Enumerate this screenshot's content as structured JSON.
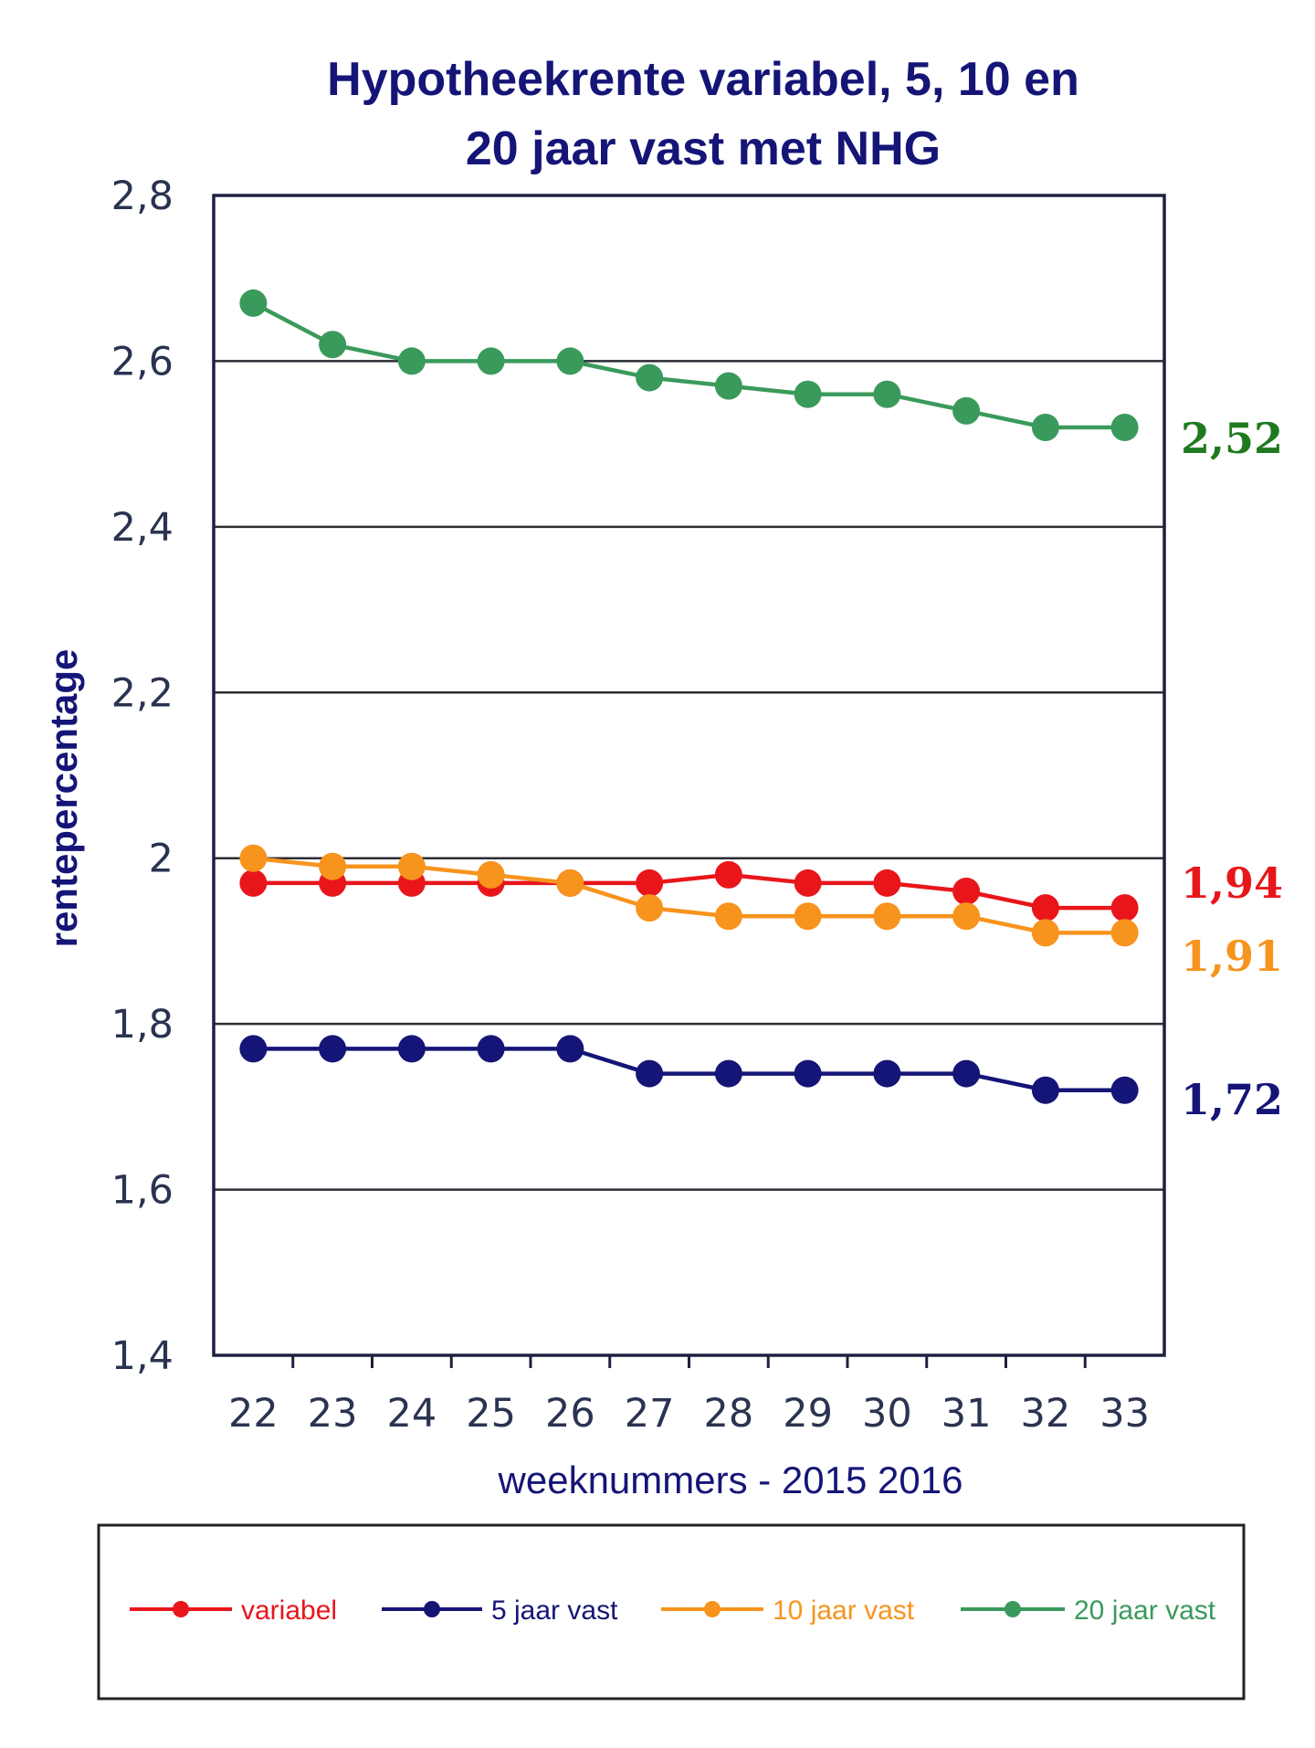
{
  "chart_data": {
    "type": "line",
    "title_lines": [
      "Hypotheekrente variabel, 5, 10 en",
      "20 jaar vast met NHG"
    ],
    "xlabel": "weeknummers - 2015 2016",
    "ylabel": "rentepercentage",
    "categories": [
      "22",
      "23",
      "24",
      "25",
      "26",
      "27",
      "28",
      "29",
      "30",
      "31",
      "32",
      "33"
    ],
    "y_ticks": [
      "1,4",
      "1,6",
      "1,8",
      "2",
      "2,2",
      "2,4",
      "2,6",
      "2,8"
    ],
    "ylim": [
      1.4,
      2.8
    ],
    "grid": "horizontal",
    "legend_position": "bottom",
    "series": [
      {
        "name": "variabel",
        "color": "#e8161b",
        "values": [
          1.97,
          1.97,
          1.97,
          1.97,
          1.97,
          1.97,
          1.98,
          1.97,
          1.97,
          1.96,
          1.94,
          1.94
        ],
        "end_label": "1,94"
      },
      {
        "name": "5 jaar vast",
        "color": "#151577",
        "values": [
          1.77,
          1.77,
          1.77,
          1.77,
          1.77,
          1.74,
          1.74,
          1.74,
          1.74,
          1.74,
          1.72,
          1.72
        ],
        "end_label": "1,72"
      },
      {
        "name": "10 jaar vast",
        "color": "#f7941d",
        "values": [
          2.0,
          1.99,
          1.99,
          1.98,
          1.97,
          1.94,
          1.93,
          1.93,
          1.93,
          1.93,
          1.91,
          1.91
        ],
        "end_label": "1,91"
      },
      {
        "name": "20 jaar vast",
        "color": "#3a9a5c",
        "values": [
          2.67,
          2.62,
          2.6,
          2.6,
          2.6,
          2.58,
          2.57,
          2.56,
          2.56,
          2.54,
          2.52,
          2.52
        ],
        "end_label": "2,52"
      }
    ],
    "colors": {
      "title": "#151577",
      "axis_text": "#2a3350",
      "end_label_20": "#1f7a1f"
    }
  }
}
